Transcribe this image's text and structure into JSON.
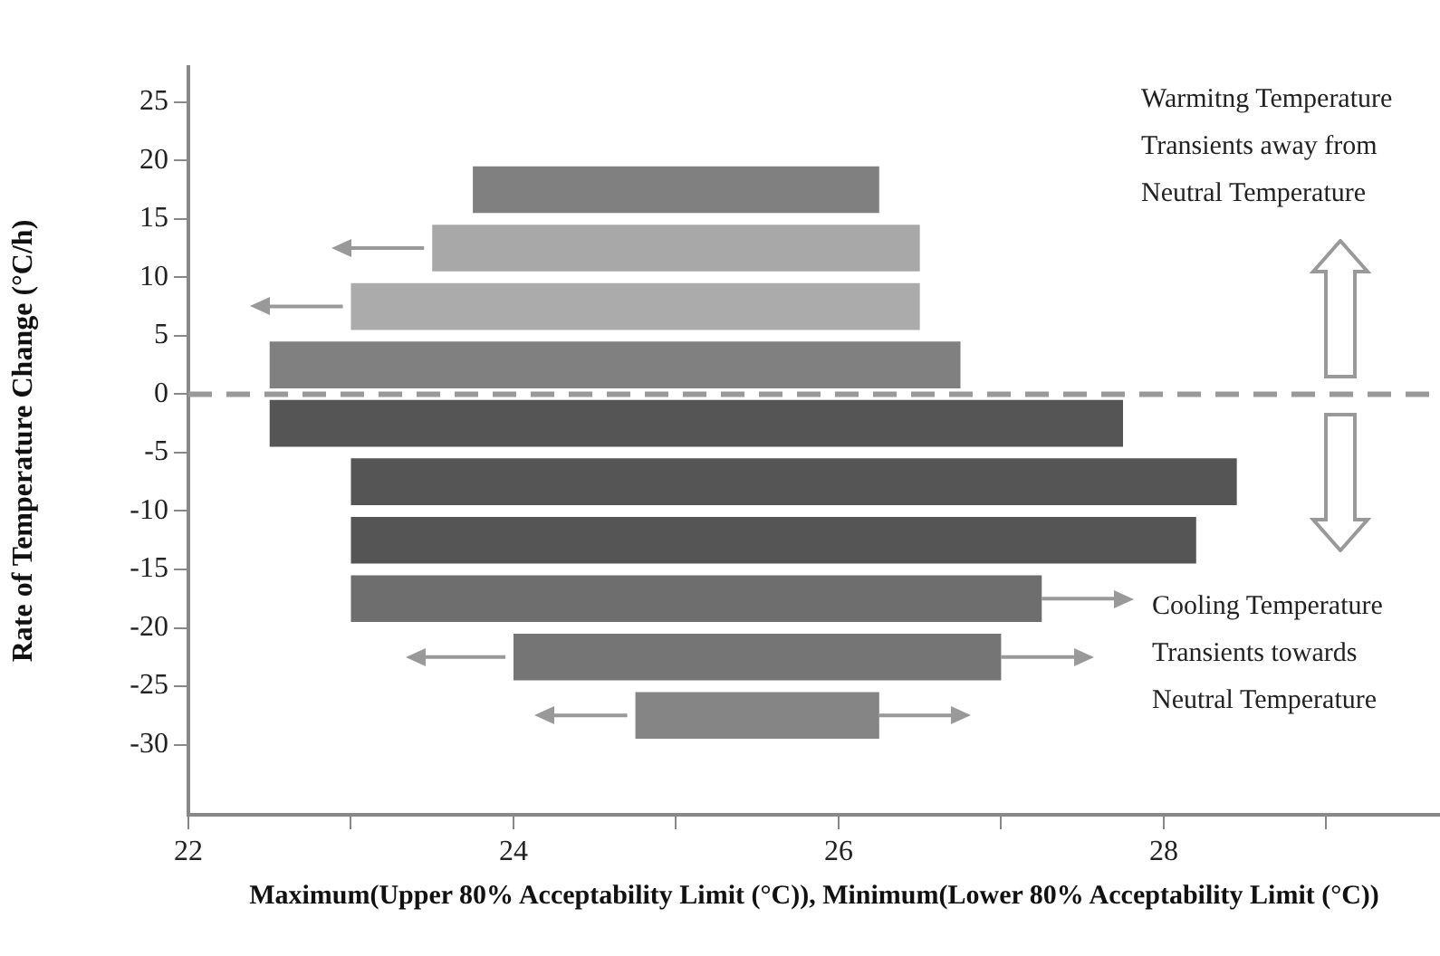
{
  "chart_data": {
    "type": "bar",
    "orientation": "horizontal",
    "xlabel": "Maximum(Upper 80% Acceptability Limit (°C)), Minimum(Lower 80% Acceptability Limit (°C))",
    "ylabel": "Rate of Temperature Change (°C/h)",
    "x": [
      17.5,
      12.5,
      7.5,
      2.5,
      -2.5,
      -7.5,
      -12.5,
      -17.5,
      -22.5,
      -27.5
    ],
    "series": [
      {
        "values": [
          2.5,
          3,
          3.5,
          4.25,
          5.25,
          5.45,
          5.2,
          4.25,
          3,
          1.5
        ],
        "base": [
          23.75,
          23.5,
          23,
          22.5,
          22.5,
          23,
          23,
          23,
          24,
          24.75
        ],
        "colors": [
          "#808080",
          "#a8a8a8",
          "#ababab",
          "#808080",
          "#555555",
          "#555555",
          "#555555",
          "#6e6e6e",
          "#757575",
          "#858585"
        ]
      },
      {
        "type": "line",
        "color": "#999999",
        "x": [
          12.5,
          12.5
        ],
        "values": [
          23.45,
          22.95
        ]
      },
      {
        "type": "line",
        "color": "#999999",
        "x": [
          7.5,
          7.5
        ],
        "values": [
          22.95,
          22.45
        ]
      },
      {
        "type": "line",
        "color": "#999999",
        "x": [
          -17.5,
          -17.5
        ],
        "values": [
          27.25,
          27.75
        ]
      },
      {
        "type": "line",
        "color": "#999999",
        "x": [
          -22.5,
          -22.5
        ],
        "values": [
          23.95,
          23.4
        ]
      },
      {
        "type": "line",
        "color": "#999999",
        "x": [
          -22.5,
          -22.5
        ],
        "values": [
          27,
          27.5
        ]
      },
      {
        "type": "line",
        "color": "#999999",
        "x": [
          -27.5,
          -27.5
        ],
        "values": [
          24.7,
          24.2
        ]
      },
      {
        "type": "line",
        "color": "#999999",
        "x": [
          -27.5,
          -27.5
        ],
        "values": [
          26.25,
          26.75
        ]
      }
    ],
    "xlim": [
      22,
      29.7
    ],
    "xticks": [
      22,
      {
        "value": 23,
        "label": null
      },
      24,
      {
        "value": 25,
        "label": null
      },
      26,
      {
        "value": 27,
        "label": null
      },
      28,
      {
        "value": 29,
        "label": null
      }
    ],
    "ylim": [
      -36,
      28
    ],
    "yticks": [
      25,
      20,
      15,
      10,
      5,
      0,
      -5,
      -10,
      -15,
      -20,
      -25,
      -30
    ],
    "ref_lines": [
      {
        "axis": "y",
        "value": 0,
        "color": "#999999",
        "line_style": "dashed"
      }
    ],
    "annotations": [
      "Warmitng Temperature Transients away from Neutral Temperature",
      "Cooling Temperature Transients towards Neutral Temperature"
    ],
    "legend": false
  }
}
